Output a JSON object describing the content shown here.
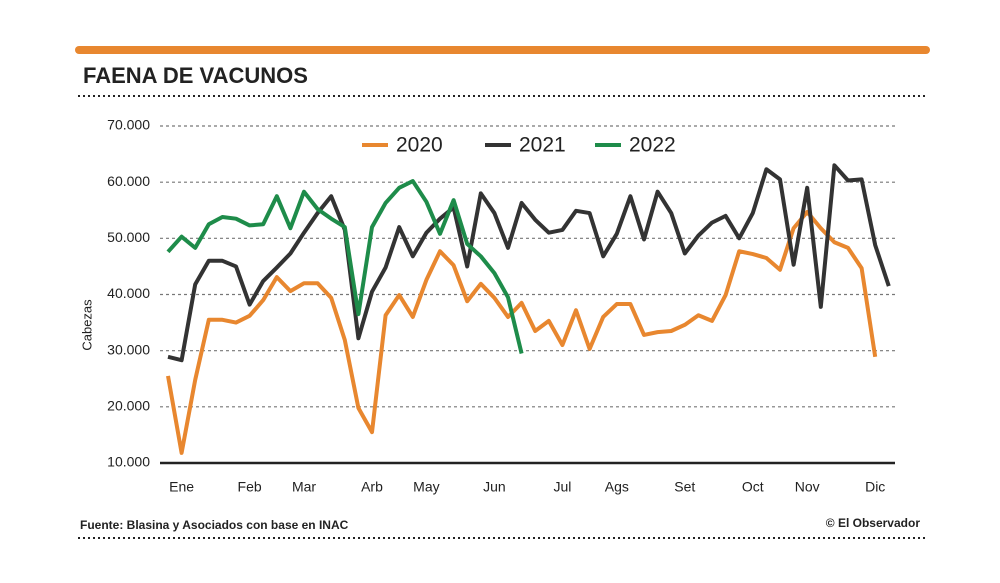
{
  "chart_data": {
    "type": "line",
    "title": "FAENA DE VACUNOS",
    "y_label": "Cabezas",
    "source": "Fuente: Blasina y Asociados con base en INAC",
    "credit": "© El Observador",
    "categories": [
      null,
      "Ene",
      null,
      null,
      null,
      null,
      "Feb",
      null,
      null,
      null,
      "Mar",
      null,
      null,
      null,
      null,
      "Arb",
      null,
      null,
      null,
      "May",
      null,
      null,
      null,
      null,
      "Jun",
      null,
      null,
      null,
      null,
      "Jul",
      null,
      null,
      null,
      "Ags",
      null,
      null,
      null,
      null,
      "Set",
      null,
      null,
      null,
      null,
      "Oct",
      null,
      null,
      null,
      "Nov",
      null,
      null,
      null,
      null,
      "Dic",
      null
    ],
    "series": [
      {
        "name": "2020",
        "color": "#e8872f",
        "values": [
          25500,
          11800,
          24800,
          35500,
          35500,
          35000,
          36200,
          39000,
          43100,
          40600,
          42000,
          42000,
          39400,
          31900,
          19800,
          15500,
          36300,
          39900,
          36000,
          42600,
          47700,
          45200,
          38800,
          41900,
          39400,
          36000,
          38500,
          33500,
          35300,
          31000,
          37200,
          30300,
          36000,
          38300,
          38300,
          32800,
          33300,
          33500,
          34600,
          36300,
          35300,
          39900,
          47700,
          47200,
          46500,
          44400,
          51800,
          54700,
          51800,
          49300,
          48300,
          44700,
          28900,
          null
        ]
      },
      {
        "name": "2021",
        "color": "#333333",
        "values": [
          28900,
          28300,
          41800,
          46000,
          46000,
          45000,
          38200,
          42400,
          44800,
          47300,
          51000,
          54500,
          57500,
          51500,
          32200,
          40500,
          44800,
          52000,
          46800,
          51000,
          53500,
          55500,
          45000,
          58000,
          54500,
          48300,
          56300,
          53300,
          51000,
          51500,
          54900,
          54500,
          46800,
          50800,
          57500,
          49800,
          58300,
          54500,
          47300,
          50500,
          52800,
          54000,
          50000,
          54500,
          62300,
          60500,
          45300,
          59000,
          37800,
          63000,
          60300,
          60500,
          48800,
          41500
        ]
      },
      {
        "name": "2022",
        "color": "#1e8c4a",
        "values": [
          47600,
          50300,
          48300,
          52500,
          53800,
          53500,
          52300,
          52500,
          57500,
          51800,
          58300,
          55200,
          53500,
          52000,
          36500,
          52000,
          56300,
          59000,
          60200,
          56500,
          50800,
          56800,
          49000,
          46800,
          43800,
          39500,
          29500,
          null,
          null,
          null,
          null,
          null,
          null,
          null,
          null,
          null,
          null,
          null,
          null,
          null,
          null,
          null,
          null,
          null,
          null,
          null,
          null,
          null,
          null,
          null,
          null,
          null,
          null,
          null
        ]
      }
    ],
    "ylim": [
      10000,
      70000
    ],
    "yticks": [
      {
        "value": 10000,
        "label": "10.000"
      },
      {
        "value": 20000,
        "label": "20.000"
      },
      {
        "value": 30000,
        "label": "30.000"
      },
      {
        "value": 40000,
        "label": "40.000"
      },
      {
        "value": 50000,
        "label": "50.000"
      },
      {
        "value": 60000,
        "label": "60.000"
      },
      {
        "value": 70000,
        "label": "70.000"
      }
    ],
    "grid": true,
    "legend": "top"
  }
}
